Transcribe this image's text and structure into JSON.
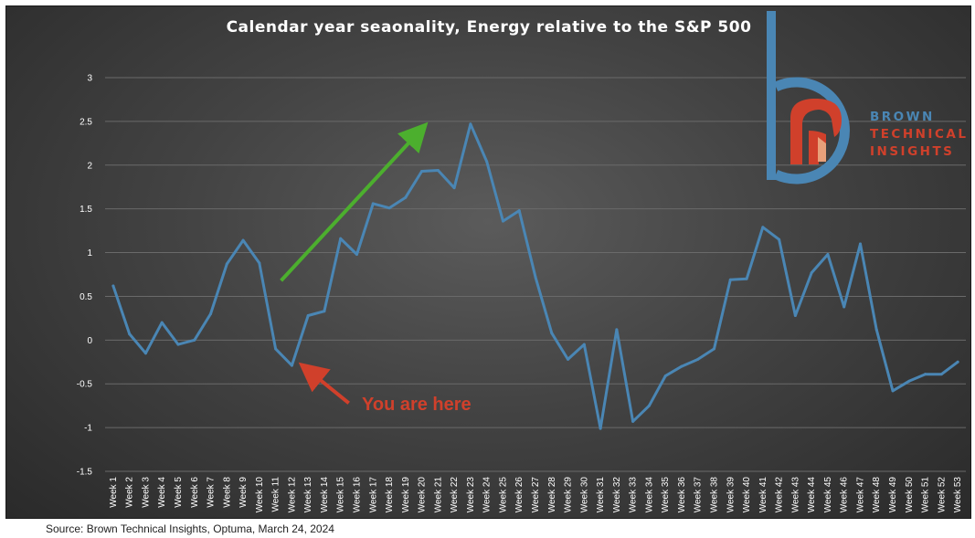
{
  "chart_data": {
    "type": "line",
    "title": "Calendar year seaonality, Energy relative to the S&P 500",
    "xlabel": "",
    "ylabel": "",
    "ylim": [
      -1.5,
      3
    ],
    "yticks": [
      3,
      2.5,
      2,
      1.5,
      1,
      0.5,
      0,
      -0.5,
      -1,
      -1.5
    ],
    "ytick_labels": [
      "3",
      "2.5",
      "2",
      "1.5",
      "1",
      "0.5",
      "0",
      "-0.5",
      "-1",
      "-1.5"
    ],
    "grid": true,
    "categories": [
      "Week 1",
      "Week 2",
      "Week 3",
      "Week 4",
      "Week 5",
      "Week 6",
      "Week 7",
      "Week 8",
      "Week 9",
      "Week 10",
      "Week 11",
      "Week 12",
      "Week 13",
      "Week 14",
      "Week 15",
      "Week 16",
      "Week 17",
      "Week 18",
      "Week 19",
      "Week 20",
      "Week 21",
      "Week 22",
      "Week 23",
      "Week 24",
      "Week 25",
      "Week 26",
      "Week 27",
      "Week 28",
      "Week 29",
      "Week 30",
      "Week 31",
      "Week 32",
      "Week 33",
      "Week 34",
      "Week 35",
      "Week 36",
      "Week 37",
      "Week 38",
      "Week 39",
      "Week 40",
      "Week 41",
      "Week 42",
      "Week 43",
      "Week 44",
      "Week 45",
      "Week 46",
      "Week 47",
      "Week 48",
      "Week 49",
      "Week 50",
      "Week 51",
      "Week 52",
      "Week 53"
    ],
    "series": [
      {
        "name": "Energy relative to the S&P 500",
        "color": "#4a86b4",
        "values": [
          0.62,
          0.07,
          -0.15,
          0.2,
          -0.05,
          0.0,
          0.3,
          0.87,
          1.14,
          0.88,
          -0.1,
          -0.29,
          0.28,
          0.33,
          1.16,
          0.98,
          1.56,
          1.51,
          1.63,
          1.93,
          1.94,
          1.74,
          2.47,
          2.04,
          1.36,
          1.48,
          0.72,
          0.08,
          -0.22,
          -0.05,
          -1.01,
          0.12,
          -0.93,
          -0.75,
          -0.41,
          -0.3,
          -0.22,
          -0.1,
          0.69,
          0.7,
          1.29,
          1.15,
          0.28,
          0.77,
          0.98,
          0.38,
          1.1,
          0.12,
          -0.58,
          -0.47,
          -0.39,
          -0.39,
          -0.25
        ]
      }
    ],
    "annotations": [
      {
        "kind": "arrow",
        "color": "#4caf2e",
        "from_x": "Week 11",
        "from_y": 0.68,
        "to_x": "Week 20",
        "to_y": 2.37
      },
      {
        "kind": "arrow",
        "color": "#d0402b",
        "from_x": "Week 15",
        "from_y": -0.72,
        "to_x": "Week 13",
        "to_y": -0.36
      },
      {
        "kind": "label",
        "text": "You are here",
        "color": "#d0402b"
      }
    ]
  },
  "logo": {
    "line1": "BROWN",
    "line2": "TECHNICAL",
    "line3": "INSIGHTS",
    "blue": "#4a86b4",
    "orange": "#d0402b"
  },
  "source": "Source: Brown Technical Insights, Optuma, March 24, 2024",
  "colors": {
    "background_center": "#5b5b5b",
    "background_edge": "#2a2a2a",
    "gridline": "#6a6a6a",
    "text": "#ffffff"
  }
}
